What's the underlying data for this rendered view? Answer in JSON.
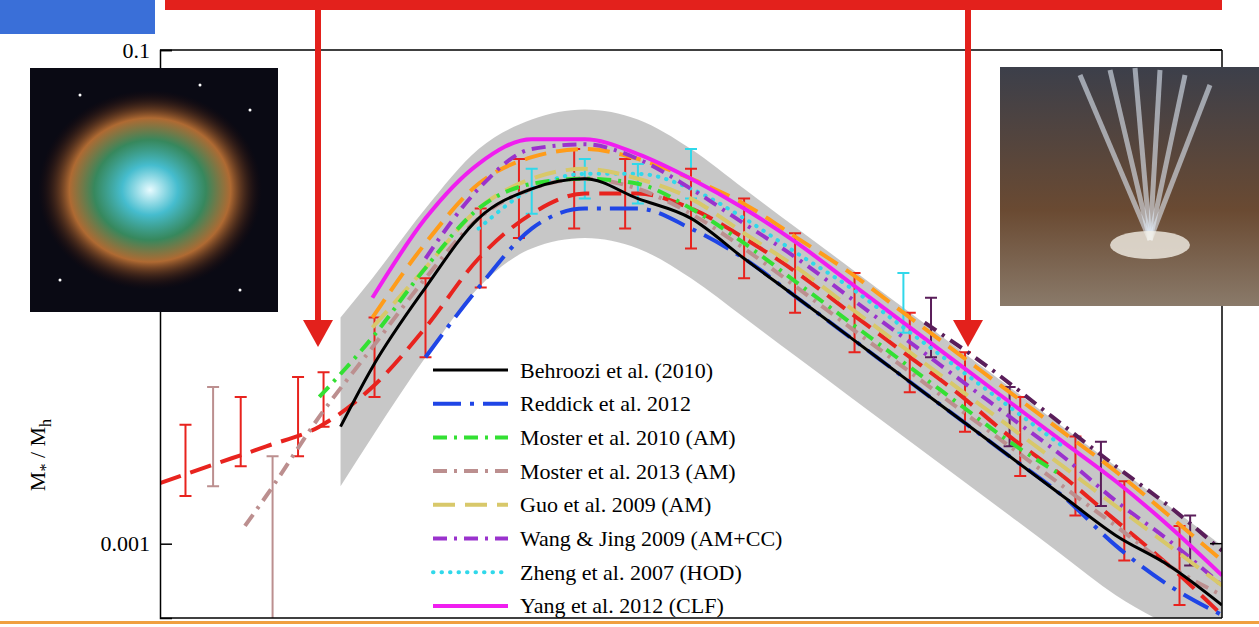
{
  "chart_data": {
    "type": "line",
    "y_label": "M* / Mh",
    "log": "y",
    "tick_labels": "y",
    "legend": "bottom",
    "xlim": [
      10,
      15
    ],
    "ylim": [
      0.0005,
      0.1
    ],
    "yticks": [
      0.001,
      0.1
    ],
    "series": [
      {
        "name": "Behroozi et al. (2010)",
        "color": "#000000",
        "line_style": "solid",
        "x": [
          10.85,
          11,
          11.25,
          11.5,
          11.75,
          12,
          12.25,
          12.5,
          12.75,
          13,
          13.25,
          13.5,
          13.75,
          14,
          14.25,
          14.5,
          14.75,
          15
        ],
        "values": [
          0.00298,
          0.00519,
          0.0109,
          0.0208,
          0.0274,
          0.0301,
          0.025,
          0.0208,
          0.0143,
          0.00991,
          0.00685,
          0.00473,
          0.00327,
          0.00226,
          0.00156,
          0.00108,
          0.000816,
          0.000564
        ],
        "upper": [
          0.00824,
          0.0119,
          0.0228,
          0.0397,
          0.0523,
          0.0574,
          0.0523,
          0.0397,
          0.0274,
          0.0189,
          0.0131,
          0.00903,
          0.00624,
          0.00431,
          0.00298,
          0.00206,
          0.00142,
          0.000982
        ],
        "lower": [
          0.00171,
          0.00272,
          0.00569,
          0.0109,
          0.0157,
          0.0173,
          0.0157,
          0.0119,
          0.00824,
          0.00569,
          0.00393,
          0.00272,
          0.00188,
          0.0013,
          0.000895,
          0.000618,
          0.000469,
          0.000389
        ]
      },
      {
        "name": "Reddick et al. 2012",
        "color": "#1f45e6",
        "line_style": "longdashdot",
        "x": [
          11.25,
          11.5,
          11.75,
          12,
          12.25,
          12.5,
          12.75,
          13,
          13.25,
          13.5,
          13.75,
          14,
          14.25,
          14.5,
          14.75,
          15
        ],
        "values": [
          0.00569,
          0.0109,
          0.0189,
          0.0228,
          0.0228,
          0.0189,
          0.0143,
          0.00991,
          0.00685,
          0.00473,
          0.00327,
          0.00226,
          0.00156,
          0.000982,
          0.000678,
          0.000514
        ]
      },
      {
        "name": "Moster et al. 2010 (AM)",
        "color": "#33e033",
        "line_style": "dashdot",
        "x": [
          10.75,
          11,
          11.25,
          11.5,
          11.75,
          12,
          12.25,
          12.5,
          12.75,
          13,
          13.25,
          13.5,
          13.75,
          14,
          14.25
        ],
        "values": [
          0.00393,
          0.00685,
          0.0131,
          0.0228,
          0.0287,
          0.0301,
          0.0287,
          0.0228,
          0.0165,
          0.0114,
          0.00787,
          0.00543,
          0.00375,
          0.00259,
          0.00188
        ]
      },
      {
        "name": "Moster et al. 2013 (AM)",
        "color": "#bc8f8f",
        "line_style": "dashdot",
        "x": [
          10.4,
          10.5,
          10.75,
          11,
          11.25,
          11.5,
          11.75,
          12,
          12.25,
          12.5,
          12.75,
          13,
          13.25,
          13.5,
          13.75,
          14,
          14.25,
          14.5,
          14.75,
          15
        ],
        "values": [
          0.00118,
          0.00156,
          0.00327,
          0.00624,
          0.0119,
          0.0208,
          0.0274,
          0.0301,
          0.0274,
          0.0217,
          0.0157,
          0.0109,
          0.00751,
          0.00519,
          0.00358,
          0.00248,
          0.00171,
          0.00118,
          0.000816,
          0.000618
        ],
        "errorbars": {
          "x": [
            10.25,
            10.53
          ],
          "upper": [
            0.00431,
            0.00226
          ],
          "lower": [
            0.00171,
            0.00045
          ]
        }
      },
      {
        "name": "Guo et al. 2009 (AM)",
        "color": "#d8c86a",
        "line_style": "dashed",
        "x": [
          11,
          11.25,
          11.5,
          11.75,
          12,
          12.25,
          12.5,
          12.75,
          13,
          13.25,
          13.5,
          13.75,
          14,
          14.25,
          14.5,
          14.75,
          15
        ],
        "values": [
          0.00751,
          0.0131,
          0.0228,
          0.0301,
          0.033,
          0.0301,
          0.025,
          0.0181,
          0.0131,
          0.00903,
          0.00624,
          0.00431,
          0.00298,
          0.00206,
          0.00142,
          0.000982,
          0.000678
        ]
      },
      {
        "name": "Wang & Jing 2009 (AM+CC)",
        "color": "#9a32cd",
        "line_style": "dashdot",
        "x": [
          11.25,
          11.5,
          11.75,
          12,
          12.25,
          12.5,
          12.75,
          13,
          13.25,
          13.5,
          13.75,
          14,
          14.25,
          14.5,
          14.75,
          15
        ],
        "values": [
          0.0143,
          0.0274,
          0.0397,
          0.0415,
          0.0362,
          0.0274,
          0.0198,
          0.0143,
          0.00991,
          0.00685,
          0.00473,
          0.00327,
          0.00226,
          0.00149,
          0.00103,
          0.000678
        ]
      },
      {
        "name": "Zheng et al. 2007 (HOD)",
        "color": "#30d8ea",
        "line_style": "dotted",
        "x": [
          11.5,
          11.75,
          12,
          12.25,
          12.5,
          12.75,
          13,
          13.25,
          13.5,
          13.75,
          14,
          14.25
        ],
        "values": [
          0.0189,
          0.0274,
          0.0315,
          0.0315,
          0.0274,
          0.0208,
          0.015,
          0.0109,
          0.00751,
          0.00519,
          0.00358,
          0.00248
        ],
        "errorbars": {
          "x": [
            11.75,
            12,
            12.25,
            12.5,
            13.5
          ],
          "upper": [
            0.033,
            0.0362,
            0.0345,
            0.0397,
            0.0125
          ],
          "lower": [
            0.0217,
            0.025,
            0.0239,
            0.025,
            0.00716
          ]
        }
      },
      {
        "name": "Yang et al. 2012 (CLF)",
        "color": "#f01ef0",
        "line_style": "solid",
        "x": [
          11,
          11.25,
          11.5,
          11.75,
          12,
          12.25,
          12.5,
          12.75,
          13,
          13.25,
          13.5,
          13.75,
          14,
          14.25,
          14.5,
          14.75,
          15
        ],
        "values": [
          0.00991,
          0.0208,
          0.0346,
          0.0435,
          0.0435,
          0.0379,
          0.0301,
          0.0228,
          0.0165,
          0.0114,
          0.00787,
          0.00543,
          0.00375,
          0.00259,
          0.00179,
          0.00118,
          0.000744
        ]
      },
      {
        "color": "#ff9c1a",
        "line_style": "dashed",
        "x": [
          11,
          11.25,
          11.5,
          11.75,
          12,
          12.25,
          12.5,
          12.75,
          13,
          13.25,
          13.5,
          13.75,
          14,
          14.25,
          14.5,
          14.75,
          15
        ],
        "values": [
          0.00824,
          0.0165,
          0.0287,
          0.0368,
          0.0397,
          0.0362,
          0.0301,
          0.0238,
          0.0173,
          0.0125,
          0.00863,
          0.00596,
          0.00411,
          0.00284,
          0.00196,
          0.0013,
          0.000855
        ]
      },
      {
        "color": "#e8231e",
        "line_style": "dashed",
        "x": [
          10,
          10.25,
          10.5,
          10.75,
          11,
          11.25,
          11.5,
          11.75,
          12,
          12.25,
          12.5,
          12.75,
          13,
          13.25,
          13.5,
          13.75,
          14,
          14.25,
          14.5,
          14.75,
          15
        ],
        "values": [
          0.00176,
          0.00209,
          0.00248,
          0.00298,
          0.00431,
          0.00751,
          0.0143,
          0.0217,
          0.0262,
          0.0262,
          0.0228,
          0.0173,
          0.0125,
          0.00863,
          0.00596,
          0.00411,
          0.00272,
          0.00188,
          0.00124,
          0.000816,
          0.000514
        ],
        "errorbars": {
          "x": [
            10.12,
            10.38,
            10.65,
            10.77,
            11.01,
            11.25,
            11.51,
            11.69,
            11.95,
            12.19,
            12.5,
            12.75,
            12.99,
            13.27,
            13.53,
            13.79,
            14.05,
            14.31,
            14.54,
            14.8
          ],
          "upper": [
            0.00303,
            0.00393,
            0.00473,
            0.00495,
            0.00824,
            0.0119,
            0.0228,
            0.0362,
            0.0397,
            0.0362,
            0.033,
            0.025,
            0.0181,
            0.0125,
            0.00863,
            0.00596,
            0.00393,
            0.00272,
            0.00179,
            0.00118
          ],
          "lower": [
            0.00156,
            0.00206,
            0.00226,
            0.00298,
            0.00393,
            0.00569,
            0.0109,
            0.0173,
            0.0189,
            0.0189,
            0.0157,
            0.0119,
            0.00863,
            0.00596,
            0.00411,
            0.00284,
            0.00188,
            0.0013,
            0.000855,
            0.000564
          ]
        }
      },
      {
        "color": "#5a1e5a",
        "line_style": "dashdot",
        "x": [
          13.6,
          13.9,
          14.2,
          14.5,
          14.75,
          15
        ],
        "values": [
          0.00787,
          0.00519,
          0.00327,
          0.00206,
          0.00142,
          0.000937
        ],
        "errorbars": {
          "x": [
            13.63,
            14,
            14.43,
            14.85
          ],
          "upper": [
            0.00991,
            0.00431,
            0.00259,
            0.0013
          ],
          "lower": [
            0.00569,
            0.00248,
            0.00142,
            0.000816
          ]
        }
      }
    ]
  }
}
